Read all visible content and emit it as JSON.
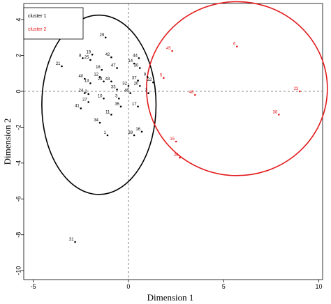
{
  "chart_data": {
    "type": "scatter",
    "xlabel": "Dimension 1",
    "ylabel": "Dimension 2",
    "xlim": [
      -5.5,
      10.2
    ],
    "ylim": [
      -10.5,
      4.9
    ],
    "xticks": [
      -5,
      0,
      5,
      10
    ],
    "yticks": [
      -10,
      -8,
      -6,
      -4,
      -2,
      0,
      2,
      4
    ],
    "reference_lines": {
      "x": 0,
      "y": 0,
      "style": "dashed"
    },
    "legend": {
      "position": "top-left",
      "entries": [
        {
          "label": "cluster 1",
          "color": "#000000"
        },
        {
          "label": "cluster 2",
          "color": "#e31a1c"
        }
      ]
    },
    "ellipses": [
      {
        "cluster": "cluster 1",
        "color": "#000000",
        "cx": -1.55,
        "cy": -0.75,
        "rx": 3.0,
        "ry": 5.0
      },
      {
        "cluster": "cluster 2",
        "color": "#e31a1c",
        "cx": 5.7,
        "cy": 0.15,
        "rx": 4.75,
        "ry": 4.85
      }
    ],
    "series": [
      {
        "name": "cluster 1",
        "color": "#000000",
        "points": [
          {
            "label": "29",
            "x": -1.2,
            "y": 3.0
          },
          {
            "label": "19",
            "x": -1.9,
            "y": 2.05
          },
          {
            "label": "8",
            "x": -2.4,
            "y": 1.85
          },
          {
            "label": "25",
            "x": -2.0,
            "y": 1.75
          },
          {
            "label": "42",
            "x": -0.9,
            "y": 1.9
          },
          {
            "label": "44",
            "x": 0.55,
            "y": 1.85
          },
          {
            "label": "14",
            "x": 0.3,
            "y": 1.55
          },
          {
            "label": "21",
            "x": -3.5,
            "y": 1.4
          },
          {
            "label": "18",
            "x": -1.4,
            "y": 1.2
          },
          {
            "label": "47",
            "x": -0.6,
            "y": 1.3
          },
          {
            "label": "30",
            "x": 0.6,
            "y": 1.3
          },
          {
            "label": "40",
            "x": -2.3,
            "y": 0.7
          },
          {
            "label": "12",
            "x": -1.5,
            "y": 0.8
          },
          {
            "label": "9",
            "x": 1.0,
            "y": 0.8
          },
          {
            "label": "13",
            "x": -2.0,
            "y": 0.45
          },
          {
            "label": "28",
            "x": -1.3,
            "y": 0.55
          },
          {
            "label": "43",
            "x": -0.9,
            "y": 0.55
          },
          {
            "label": "37",
            "x": 0.5,
            "y": 0.6
          },
          {
            "label": "22",
            "x": 1.3,
            "y": 0.5
          },
          {
            "label": "32",
            "x": 0.0,
            "y": 0.3
          },
          {
            "label": "20",
            "x": 0.6,
            "y": 0.3
          },
          {
            "label": "33",
            "x": -0.6,
            "y": 0.1
          },
          {
            "label": "24",
            "x": -2.3,
            "y": -0.1
          },
          {
            "label": "2",
            "x": -2.1,
            "y": -0.15
          },
          {
            "label": "46",
            "x": 0.1,
            "y": -0.1
          },
          {
            "label": "7",
            "x": 1.05,
            "y": -0.1
          },
          {
            "label": "10",
            "x": -1.3,
            "y": -0.4
          },
          {
            "label": "3",
            "x": -0.5,
            "y": -0.4
          },
          {
            "label": "27",
            "x": -2.1,
            "y": -0.6
          },
          {
            "label": "35",
            "x": -0.4,
            "y": -0.85
          },
          {
            "label": "17",
            "x": 0.5,
            "y": -0.85
          },
          {
            "label": "41",
            "x": -2.5,
            "y": -0.95
          },
          {
            "label": "11",
            "x": -0.9,
            "y": -1.3
          },
          {
            "label": "34",
            "x": -1.5,
            "y": -1.75
          },
          {
            "label": "16",
            "x": 0.7,
            "y": -2.25
          },
          {
            "label": "1",
            "x": -1.1,
            "y": -2.45
          },
          {
            "label": "39",
            "x": 0.3,
            "y": -2.45
          },
          {
            "label": "31",
            "x": -2.8,
            "y": -8.4
          }
        ]
      },
      {
        "name": "cluster 2",
        "color": "#e31a1c",
        "points": [
          {
            "label": "6",
            "x": 5.7,
            "y": 2.5
          },
          {
            "label": "45",
            "x": 2.3,
            "y": 2.25
          },
          {
            "label": "5",
            "x": 1.85,
            "y": 0.75
          },
          {
            "label": "23",
            "x": 9.0,
            "y": 0.0
          },
          {
            "label": "48",
            "x": 3.5,
            "y": -0.2
          },
          {
            "label": "38",
            "x": 7.9,
            "y": -1.3
          },
          {
            "label": "15",
            "x": 2.5,
            "y": -2.8
          },
          {
            "label": "26",
            "x": 2.7,
            "y": -3.7
          }
        ]
      }
    ]
  }
}
